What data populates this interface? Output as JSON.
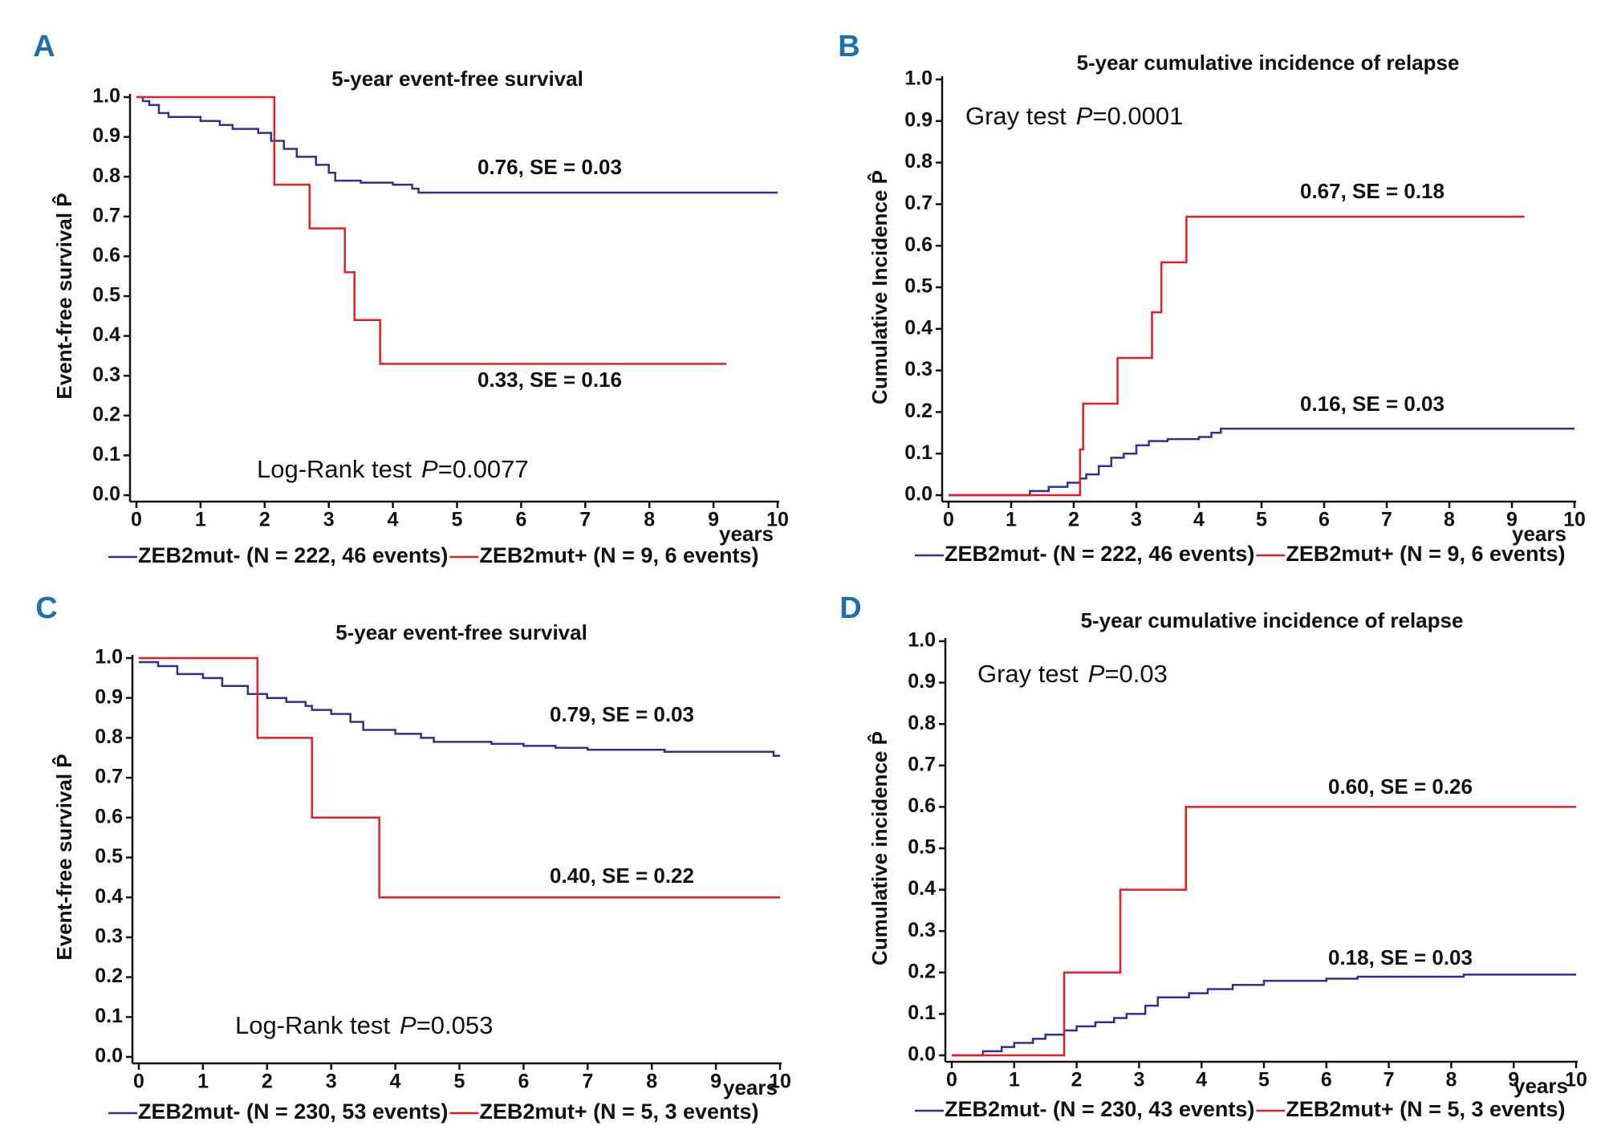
{
  "chart_data": [
    {
      "type": "line",
      "step": true,
      "panel": "A",
      "title": "5-year event-free survival",
      "ylabel": "Event-free survival P̂",
      "xlabel": "years",
      "xlim": [
        0,
        10
      ],
      "xticks": [
        0,
        1,
        2,
        3,
        4,
        5,
        6,
        7,
        8,
        9,
        10
      ],
      "ylim": [
        0,
        1
      ],
      "yticks": [
        {
          "value": 0,
          "label": "0.0"
        },
        0.1,
        0.2,
        0.3,
        0.4,
        0.5,
        0.6,
        0.7,
        0.8,
        0.9,
        {
          "value": 1,
          "label": "1.0"
        }
      ],
      "test": {
        "text": "Log-Rank test",
        "p": "P",
        "value": "=0.0077"
      },
      "series": [
        {
          "name": "ZEB2mut- (N = 222, 46 events)",
          "color": "#2e3192",
          "label": "0.76, SE = 0.03",
          "x": [
            0,
            0.1,
            0.2,
            0.35,
            0.5,
            1,
            1.3,
            1.5,
            1.9,
            2.1,
            2.3,
            2.5,
            2.8,
            3.0,
            3.1,
            3.5,
            4.0,
            4.3,
            4.4,
            10
          ],
          "values": [
            1.0,
            0.99,
            0.98,
            0.96,
            0.95,
            0.94,
            0.93,
            0.92,
            0.91,
            0.89,
            0.87,
            0.85,
            0.83,
            0.81,
            0.79,
            0.785,
            0.78,
            0.77,
            0.76,
            0.76
          ]
        },
        {
          "name": "ZEB2mut+ (N = 9, 6 events)",
          "color": "#e31e24",
          "label": "0.33, SE = 0.16",
          "x": [
            0,
            2.15,
            2.7,
            3.25,
            3.4,
            3.8,
            9.2
          ],
          "values": [
            1.0,
            0.78,
            0.67,
            0.56,
            0.44,
            0.33,
            0.33
          ]
        }
      ]
    },
    {
      "type": "line",
      "step": true,
      "panel": "B",
      "title": "5-year cumulative incidence of relapse",
      "ylabel": "Cumulative Incidence P̂",
      "xlabel": "years",
      "xlim": [
        0,
        10
      ],
      "xticks": [
        0,
        1,
        2,
        3,
        4,
        5,
        6,
        7,
        8,
        9,
        10
      ],
      "ylim": [
        0,
        1
      ],
      "yticks": [
        {
          "value": 0,
          "label": "0.0"
        },
        0.1,
        0.2,
        0.3,
        0.4,
        0.5,
        0.6,
        0.7,
        0.8,
        0.9,
        {
          "value": 1,
          "label": "1.0"
        }
      ],
      "test": {
        "text": "Gray test",
        "p": "P",
        "value": "=0.0001"
      },
      "series": [
        {
          "name": "ZEB2mut- (N = 222, 46 events)",
          "color": "#2e3192",
          "label": "0.16, SE = 0.03",
          "x": [
            0,
            1.3,
            1.6,
            1.9,
            2.1,
            2.2,
            2.4,
            2.6,
            2.8,
            3.0,
            3.2,
            3.5,
            4.0,
            4.2,
            4.35,
            10
          ],
          "values": [
            0,
            0.01,
            0.02,
            0.03,
            0.04,
            0.05,
            0.07,
            0.09,
            0.1,
            0.12,
            0.13,
            0.135,
            0.14,
            0.15,
            0.16,
            0.16
          ]
        },
        {
          "name": "ZEB2mut+ (N = 9, 6 events)",
          "color": "#e31e24",
          "label": "0.67, SE = 0.18",
          "x": [
            0,
            2.1,
            2.15,
            2.7,
            3.25,
            3.4,
            3.8,
            9.2
          ],
          "values": [
            0,
            0.11,
            0.22,
            0.33,
            0.44,
            0.56,
            0.67,
            0.67
          ]
        }
      ]
    },
    {
      "type": "line",
      "step": true,
      "panel": "C",
      "title": "5-year event-free survival",
      "ylabel": "Event-free survival P̂",
      "xlabel": "years",
      "xlim": [
        0,
        10
      ],
      "xticks": [
        0,
        1,
        2,
        3,
        4,
        5,
        6,
        7,
        8,
        9,
        10
      ],
      "ylim": [
        0,
        1
      ],
      "yticks": [
        {
          "value": 0,
          "label": "0.0"
        },
        0.1,
        0.2,
        0.3,
        0.4,
        0.5,
        0.6,
        0.7,
        0.8,
        0.9,
        {
          "value": 1,
          "label": "1.0"
        }
      ],
      "test": {
        "text": "Log-Rank test",
        "p": "P",
        "value": "=0.053"
      },
      "series": [
        {
          "name": "ZEB2mut- (N = 230, 53 events)",
          "color": "#2e3192",
          "label": "0.79, SE = 0.03",
          "x": [
            0,
            0.3,
            0.6,
            1,
            1.3,
            1.7,
            2,
            2.3,
            2.6,
            2.7,
            3.0,
            3.3,
            3.5,
            4,
            4.4,
            4.6,
            5.5,
            6,
            6.5,
            7,
            8.2,
            9.9,
            10
          ],
          "values": [
            0.99,
            0.98,
            0.96,
            0.95,
            0.93,
            0.91,
            0.9,
            0.89,
            0.88,
            0.87,
            0.86,
            0.84,
            0.82,
            0.81,
            0.8,
            0.79,
            0.785,
            0.78,
            0.775,
            0.77,
            0.765,
            0.755,
            0.755
          ]
        },
        {
          "name": "ZEB2mut+ (N = 5, 3 events)",
          "color": "#e31e24",
          "label": "0.40, SE = 0.22",
          "x": [
            0,
            1.85,
            2.7,
            3.75,
            10
          ],
          "values": [
            1.0,
            0.8,
            0.6,
            0.4,
            0.4
          ]
        }
      ]
    },
    {
      "type": "line",
      "step": true,
      "panel": "D",
      "title": "5-year cumulative incidence of relapse",
      "ylabel": "Cumulative incidence P̂",
      "xlabel": "years",
      "xlim": [
        0,
        10
      ],
      "xticks": [
        0,
        1,
        2,
        3,
        4,
        5,
        6,
        7,
        8,
        9,
        10
      ],
      "ylim": [
        0,
        1
      ],
      "yticks": [
        {
          "value": 0,
          "label": "0.0"
        },
        0.1,
        0.2,
        0.3,
        0.4,
        0.5,
        0.6,
        0.7,
        0.8,
        0.9,
        {
          "value": 1,
          "label": "1.0"
        }
      ],
      "test": {
        "text": "Gray test",
        "p": "P",
        "value": "=0.03"
      },
      "series": [
        {
          "name": "ZEB2mut- (N = 230, 43 events)",
          "color": "#2e3192",
          "label": "0.18,  SE = 0.03",
          "x": [
            0,
            0.5,
            0.8,
            1,
            1.3,
            1.5,
            1.8,
            2,
            2.3,
            2.6,
            2.8,
            3.1,
            3.3,
            3.8,
            4.1,
            4.5,
            5,
            6,
            6.5,
            8.2,
            10
          ],
          "values": [
            0,
            0.01,
            0.02,
            0.03,
            0.04,
            0.05,
            0.06,
            0.07,
            0.08,
            0.09,
            0.1,
            0.12,
            0.14,
            0.15,
            0.16,
            0.17,
            0.18,
            0.185,
            0.19,
            0.195,
            0.195
          ]
        },
        {
          "name": "ZEB2mut+ (N = 5, 3 events)",
          "color": "#e31e24",
          "label": "0.60,  SE = 0.26",
          "x": [
            0,
            1.8,
            2.7,
            3.75,
            10
          ],
          "values": [
            0,
            0.2,
            0.4,
            0.6,
            0.6
          ]
        }
      ]
    }
  ]
}
